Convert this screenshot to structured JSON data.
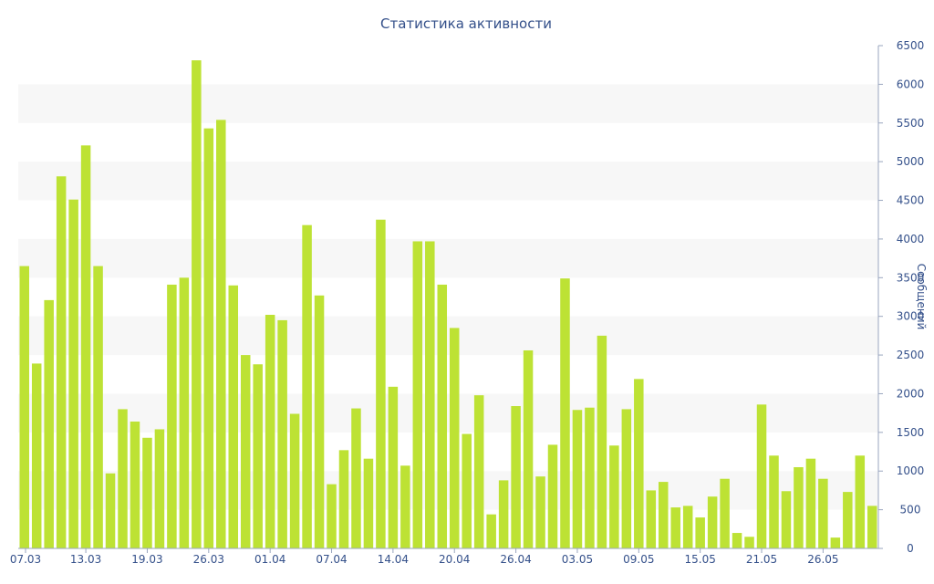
{
  "chart_data": {
    "type": "bar",
    "title": "Статистика активности",
    "ylabel": "Сообщений",
    "xlabel": "",
    "ylim": [
      0,
      6500
    ],
    "y_ticks": [
      0,
      500,
      1000,
      1500,
      2000,
      2500,
      3000,
      3500,
      4000,
      4500,
      5000,
      5500,
      6000,
      6500
    ],
    "y_axis_side": "right",
    "grid": "alternating horizontal bands",
    "legend": "none",
    "bar_color": "#bde234",
    "band_color": "#f7f7f7",
    "text_color": "#34508a",
    "x_tick_labels": [
      {
        "index": 0,
        "label": "07.03"
      },
      {
        "index": 5,
        "label": "13.03"
      },
      {
        "index": 10,
        "label": "19.03"
      },
      {
        "index": 15,
        "label": "26.03"
      },
      {
        "index": 20,
        "label": "01.04"
      },
      {
        "index": 25,
        "label": "07.04"
      },
      {
        "index": 30,
        "label": "14.04"
      },
      {
        "index": 35,
        "label": "20.04"
      },
      {
        "index": 40,
        "label": "26.04"
      },
      {
        "index": 45,
        "label": "03.05"
      },
      {
        "index": 50,
        "label": "09.05"
      },
      {
        "index": 55,
        "label": "15.05"
      },
      {
        "index": 60,
        "label": "21.05"
      },
      {
        "index": 65,
        "label": "26.05"
      }
    ],
    "values": [
      3650,
      2390,
      3210,
      4810,
      4510,
      5210,
      3650,
      970,
      1800,
      1640,
      1430,
      1540,
      3410,
      3500,
      6310,
      5430,
      5540,
      3400,
      2500,
      2380,
      3020,
      2950,
      1740,
      4180,
      3270,
      830,
      1270,
      1810,
      1160,
      4250,
      2090,
      1070,
      3970,
      3970,
      3410,
      2850,
      1480,
      1980,
      440,
      880,
      1840,
      2560,
      930,
      1340,
      3490,
      1790,
      1820,
      2750,
      1330,
      1800,
      2190,
      750,
      860,
      530,
      550,
      400,
      670,
      900,
      200,
      150,
      1860,
      1200,
      740,
      1050,
      1160,
      900,
      140,
      730,
      1200,
      550
    ]
  }
}
